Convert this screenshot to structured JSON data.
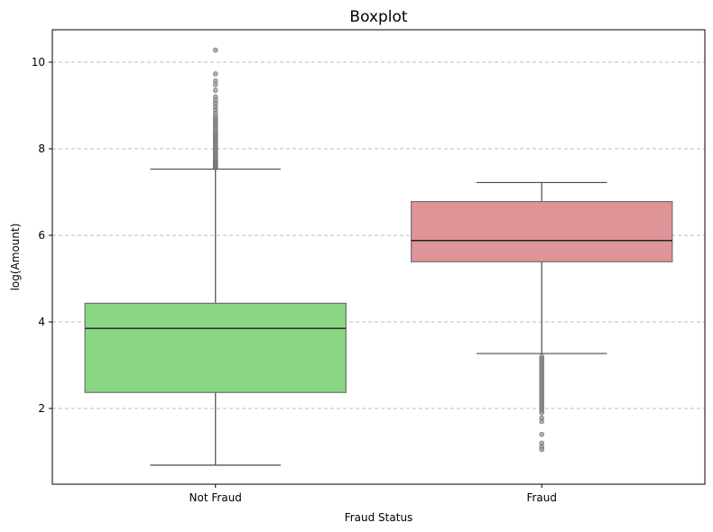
{
  "chart_data": {
    "type": "boxplot",
    "title": "Boxplot",
    "xlabel": "Fraud Status",
    "ylabel": "log(Amount)",
    "ylim": [
      0.25,
      10.75
    ],
    "yticks": [
      "2",
      "4",
      "6",
      "8",
      "10"
    ],
    "grid": "y-dashed",
    "categories": [
      "Not Fraud",
      "Fraud"
    ],
    "boxes": [
      {
        "category": "Not Fraud",
        "color": "#8ad683",
        "whisker_low": 0.69,
        "q1": 2.37,
        "median": 3.85,
        "q3": 4.43,
        "whisker_high": 7.53,
        "outliers": [
          7.56,
          7.58,
          7.6,
          7.62,
          7.65,
          7.68,
          7.7,
          7.73,
          7.76,
          7.8,
          7.84,
          7.88,
          7.92,
          7.96,
          8.0,
          8.04,
          8.08,
          8.12,
          8.16,
          8.2,
          8.24,
          8.28,
          8.32,
          8.36,
          8.4,
          8.45,
          8.5,
          8.55,
          8.6,
          8.65,
          8.7,
          8.75,
          8.82,
          8.9,
          8.97,
          9.05,
          9.12,
          9.2,
          9.35,
          9.48,
          9.57,
          9.73,
          10.28
        ]
      },
      {
        "category": "Fraud",
        "color": "#df9497",
        "whisker_low": 3.27,
        "q1": 5.39,
        "median": 5.88,
        "q3": 6.78,
        "whisker_high": 7.22,
        "outliers": [
          3.2,
          3.15,
          3.1,
          3.05,
          3.0,
          2.95,
          2.9,
          2.85,
          2.8,
          2.75,
          2.7,
          2.65,
          2.6,
          2.55,
          2.5,
          2.45,
          2.4,
          2.35,
          2.3,
          2.25,
          2.2,
          2.15,
          2.1,
          2.05,
          2.0,
          1.95,
          1.9,
          1.78,
          1.7,
          1.4,
          1.2,
          1.12,
          1.05
        ]
      }
    ]
  }
}
